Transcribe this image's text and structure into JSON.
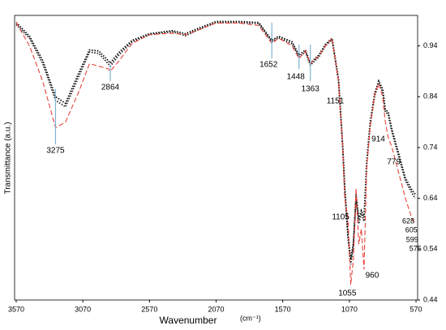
{
  "chart_data": {
    "type": "line",
    "x_label": "Wavenumber",
    "x_unit": "(cm⁻¹)",
    "y_label": "Transmittance (a.u.)",
    "xlim": [
      3582,
      558
    ],
    "xticks": [
      3570,
      3070,
      2570,
      2070,
      1570,
      1070,
      570
    ],
    "ylim": [
      0.44,
      1.0
    ],
    "yticks": [
      0.44,
      0.54,
      0.64,
      0.74,
      0.84,
      0.94
    ],
    "x": [
      3570,
      3470,
      3370,
      3275,
      3200,
      3100,
      3020,
      2950,
      2880,
      2864,
      2800,
      2700,
      2570,
      2400,
      2300,
      2200,
      2070,
      1900,
      1750,
      1652,
      1600,
      1500,
      1448,
      1400,
      1363,
      1300,
      1250,
      1200,
      1151,
      1120,
      1105,
      1080,
      1060,
      1040,
      1020,
      1000,
      980,
      960,
      940,
      914,
      880,
      850,
      820,
      800,
      779,
      750,
      700,
      650,
      600,
      575
    ],
    "series": [
      {
        "color": "#000000",
        "dash": "dotted",
        "values": [
          0.986,
          0.959,
          0.911,
          0.84,
          0.827,
          0.887,
          0.932,
          0.93,
          0.911,
          0.906,
          0.927,
          0.951,
          0.964,
          0.97,
          0.964,
          0.975,
          0.988,
          0.988,
          0.986,
          0.951,
          0.959,
          0.948,
          0.922,
          0.932,
          0.906,
          0.922,
          0.943,
          0.955,
          0.874,
          0.744,
          0.664,
          0.568,
          0.52,
          0.552,
          0.648,
          0.6,
          0.616,
          0.603,
          0.712,
          0.791,
          0.847,
          0.871,
          0.855,
          0.815,
          0.81,
          0.775,
          0.728,
          0.68,
          0.656,
          0.648
        ]
      },
      {
        "color": "#222222",
        "dash": "dotted",
        "values": [
          0.982,
          0.955,
          0.905,
          0.833,
          0.82,
          0.88,
          0.928,
          0.925,
          0.905,
          0.9,
          0.922,
          0.948,
          0.962,
          0.968,
          0.96,
          0.972,
          0.986,
          0.986,
          0.984,
          0.948,
          0.956,
          0.944,
          0.918,
          0.928,
          0.902,
          0.918,
          0.94,
          0.952,
          0.87,
          0.74,
          0.655,
          0.56,
          0.51,
          0.545,
          0.64,
          0.59,
          0.61,
          0.595,
          0.705,
          0.785,
          0.842,
          0.866,
          0.85,
          0.81,
          0.805,
          0.77,
          0.722,
          0.675,
          0.65,
          0.64
        ]
      },
      {
        "color": "#e8413a",
        "dash": "dashed",
        "values": [
          0.986,
          0.94,
          0.87,
          0.779,
          0.79,
          0.85,
          0.905,
          0.9,
          0.895,
          0.89,
          0.91,
          0.945,
          0.962,
          0.965,
          0.962,
          0.972,
          0.985,
          0.985,
          0.98,
          0.945,
          0.955,
          0.94,
          0.915,
          0.93,
          0.905,
          0.92,
          0.94,
          0.955,
          0.87,
          0.74,
          0.64,
          0.6,
          0.47,
          0.52,
          0.66,
          0.55,
          0.58,
          0.5,
          0.7,
          0.78,
          0.845,
          0.866,
          0.84,
          0.79,
          0.76,
          0.74,
          0.69,
          0.64,
          0.6,
          0.59
        ]
      }
    ],
    "annotations": [
      3275,
      2864,
      1652,
      1448,
      1363,
      1151,
      1105,
      1055,
      960,
      914,
      779,
      628,
      605,
      599,
      575
    ],
    "annotation_color": "#7fb3d5"
  }
}
